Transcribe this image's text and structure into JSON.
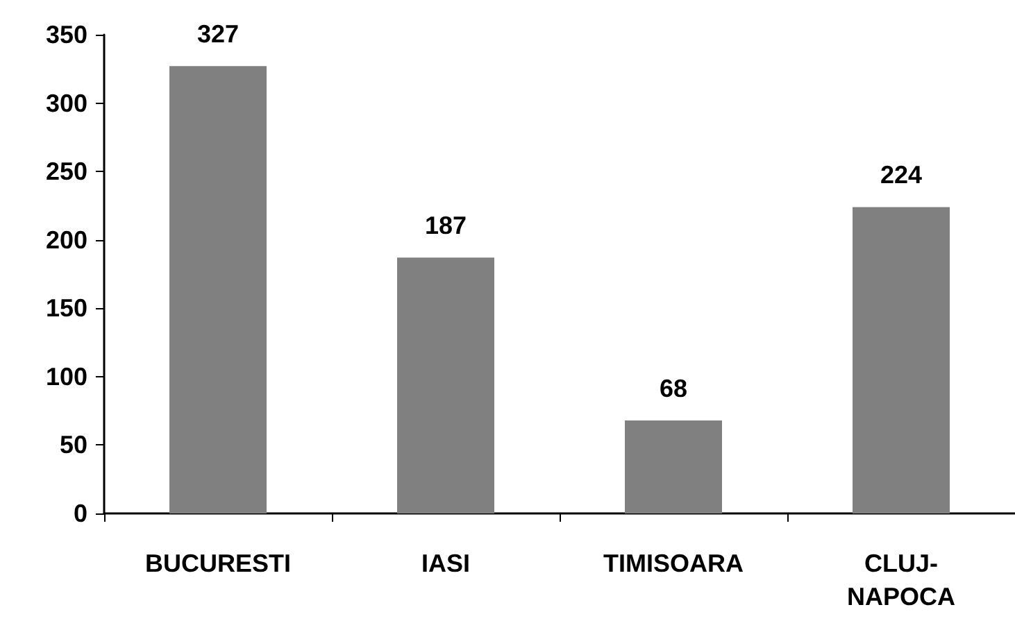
{
  "chart_data": {
    "type": "bar",
    "categories": [
      "BUCURESTI",
      "IASI",
      "TIMISOARA",
      "CLUJ-NAPOCA"
    ],
    "values": [
      327,
      187,
      68,
      224
    ],
    "color": "#808080",
    "ylim": [
      0,
      350
    ],
    "yticks": [
      0,
      50,
      100,
      150,
      200,
      250,
      300,
      350
    ],
    "grid": false,
    "data_labels": true
  }
}
